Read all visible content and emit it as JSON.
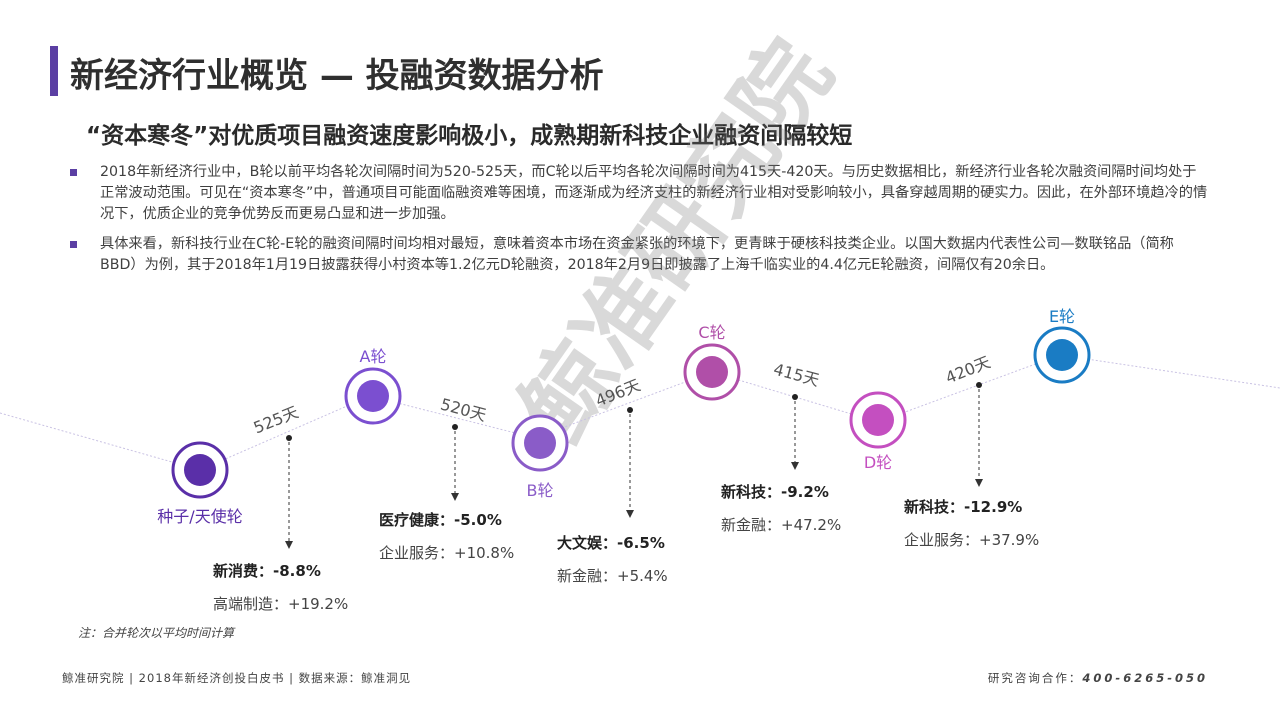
{
  "title": "新经济行业概览 — 投融资数据分析",
  "subtitle": "“资本寒冬”对优质项目融资速度影响极小，成熟期新科技企业融资间隔较短",
  "bullets": [
    "2018年新经济行业中，B轮以前平均各轮次间隔时间为520-525天，而C轮以后平均各轮次间隔时间为415天-420天。与历史数据相比，新经济行业各轮次融资间隔时间均处于正常波动范围。可见在“资本寒冬”中，普通项目可能面临融资难等困境，而逐渐成为经济支柱的新经济行业相对受影响较小，具备穿越周期的硬实力。因此，在外部环境趋冷的情况下，优质企业的竞争优势反而更易凸显和进一步加强。",
    "具体来看，新科技行业在C轮-E轮的融资间隔时间均相对最短，意味着资本市场在资金紧张的环境下，更青睐于硬核科技类企业。以国大数据内代表性公司—数联铭品（简称BBD）为例，其于2018年1月19日披露获得小村资本等1.2亿元D轮融资，2018年2月9日即披露了上海千临实业的4.4亿元E轮融资，间隔仅有20余日。"
  ],
  "rounds": [
    {
      "label": "种子/天使轮",
      "color": "#5a2fa8"
    },
    {
      "label": "A轮",
      "color": "#7b4fd0"
    },
    {
      "label": "B轮",
      "color": "#8a5cc8"
    },
    {
      "label": "C轮",
      "color": "#b04fa8"
    },
    {
      "label": "D轮",
      "color": "#c44fc0"
    },
    {
      "label": "E轮",
      "color": "#1a7cc4"
    }
  ],
  "intervals": [
    "525天",
    "520天",
    "496天",
    "415天",
    "420天"
  ],
  "stats": [
    {
      "main_label": "新消费：",
      "main_value": "-8.8%",
      "sub": "高端制造：+19.2%"
    },
    {
      "main_label": "医疗健康：",
      "main_value": "-5.0%",
      "sub": "企业服务：+10.8%"
    },
    {
      "main_label": "大文娱：",
      "main_value": "-6.5%",
      "sub": "新金融：+5.4%"
    },
    {
      "main_label": "新科技：",
      "main_value": "-9.2%",
      "sub": "新金融：+47.2%"
    },
    {
      "main_label": "新科技：",
      "main_value": "-12.9%",
      "sub": "企业服务：+37.9%"
    }
  ],
  "note": "注：合并轮次以平均时间计算",
  "watermark": "鲸准研究院",
  "footer": {
    "left": "鲸准研究院 | 2018年新经济创投白皮书 | 数据来源：鲸准洞见",
    "right_label": "研究咨询合作：",
    "right_phone": "400-6265-050"
  }
}
